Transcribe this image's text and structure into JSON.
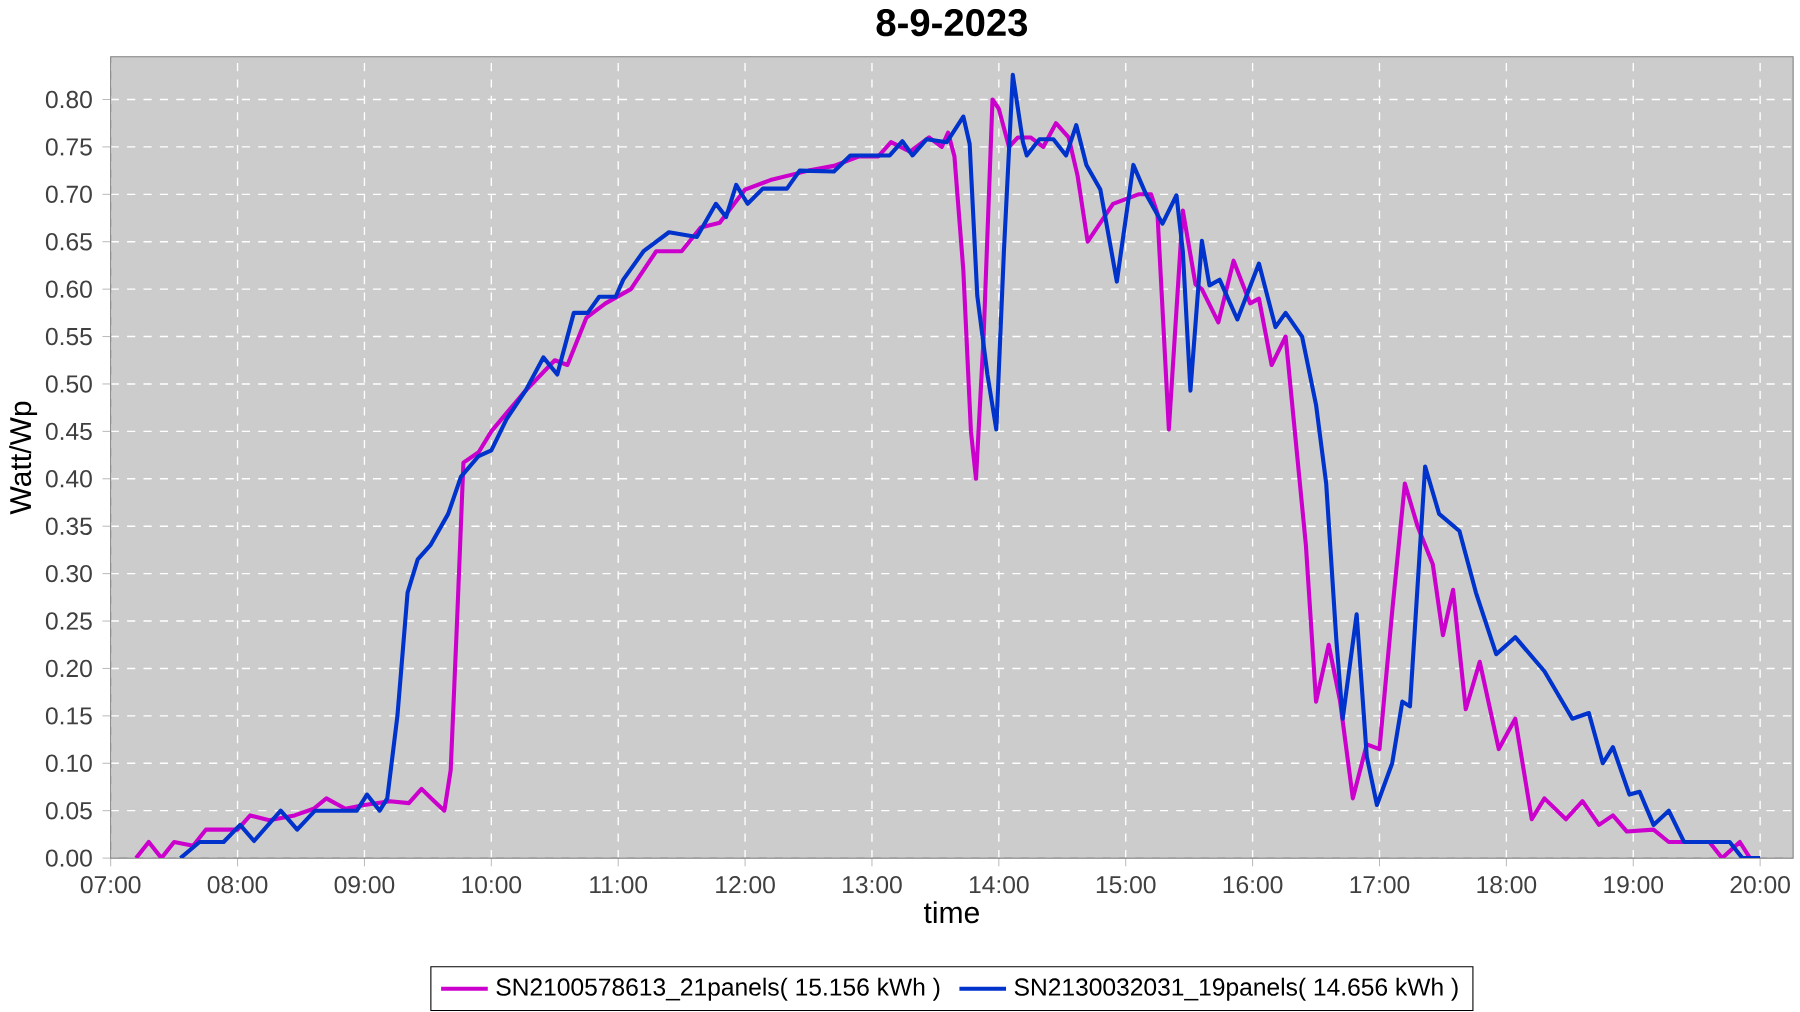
{
  "chart_data": {
    "type": "line",
    "title": "8-9-2023",
    "xlabel": "time",
    "ylabel": "Watt/Wp",
    "xlim": [
      7,
      20.26
    ],
    "ylim": [
      0,
      0.845
    ],
    "xticks": [
      {
        "value": 7,
        "label": "07:00"
      },
      {
        "value": 8,
        "label": "08:00"
      },
      {
        "value": 9,
        "label": "09:00"
      },
      {
        "value": 10,
        "label": "10:00"
      },
      {
        "value": 11,
        "label": "11:00"
      },
      {
        "value": 12,
        "label": "12:00"
      },
      {
        "value": 13,
        "label": "13:00"
      },
      {
        "value": 14,
        "label": "14:00"
      },
      {
        "value": 15,
        "label": "15:00"
      },
      {
        "value": 16,
        "label": "16:00"
      },
      {
        "value": 17,
        "label": "17:00"
      },
      {
        "value": 18,
        "label": "18:00"
      },
      {
        "value": 19,
        "label": "19:00"
      },
      {
        "value": 20,
        "label": "20:00"
      }
    ],
    "yticks": [
      {
        "value": 0,
        "label": "0.00"
      },
      {
        "value": 0.05,
        "label": "0.05"
      },
      {
        "value": 0.1,
        "label": "0.10"
      },
      {
        "value": 0.15,
        "label": "0.15"
      },
      {
        "value": 0.2,
        "label": "0.20"
      },
      {
        "value": 0.25,
        "label": "0.25"
      },
      {
        "value": 0.3,
        "label": "0.30"
      },
      {
        "value": 0.35,
        "label": "0.35"
      },
      {
        "value": 0.4,
        "label": "0.40"
      },
      {
        "value": 0.45,
        "label": "0.45"
      },
      {
        "value": 0.5,
        "label": "0.50"
      },
      {
        "value": 0.55,
        "label": "0.55"
      },
      {
        "value": 0.6,
        "label": "0.60"
      },
      {
        "value": 0.65,
        "label": "0.65"
      },
      {
        "value": 0.7,
        "label": "0.70"
      },
      {
        "value": 0.75,
        "label": "0.75"
      },
      {
        "value": 0.8,
        "label": "0.80"
      }
    ],
    "grid": true,
    "legend": "bottom",
    "marker": "none",
    "line_style": "solid",
    "series": [
      {
        "name": "SN2100578613_21panels( 15.156 kWh )",
        "color": "#cc00cc",
        "x": [
          7.2,
          7.3,
          7.4,
          7.5,
          7.65,
          7.75,
          8.0,
          8.1,
          8.25,
          8.45,
          8.6,
          8.7,
          8.85,
          9.0,
          9.2,
          9.35,
          9.45,
          9.55,
          9.63,
          9.68,
          9.73,
          9.78,
          9.9,
          10.0,
          10.25,
          10.5,
          10.6,
          10.75,
          10.9,
          11.1,
          11.3,
          11.5,
          11.65,
          11.8,
          12.0,
          12.2,
          12.5,
          12.7,
          12.9,
          13.05,
          13.15,
          13.3,
          13.45,
          13.55,
          13.6,
          13.65,
          13.72,
          13.78,
          13.82,
          13.88,
          13.95,
          14.0,
          14.08,
          14.15,
          14.25,
          14.35,
          14.45,
          14.55,
          14.62,
          14.7,
          14.9,
          15.1,
          15.2,
          15.25,
          15.34,
          15.45,
          15.55,
          15.6,
          15.73,
          15.85,
          15.98,
          16.05,
          16.15,
          16.26,
          16.42,
          16.5,
          16.6,
          16.69,
          16.79,
          16.9,
          17.0,
          17.1,
          17.2,
          17.3,
          17.42,
          17.5,
          17.58,
          17.68,
          17.79,
          17.94,
          18.07,
          18.2,
          18.3,
          18.47,
          18.6,
          18.73,
          18.84,
          18.95,
          19.16,
          19.28,
          19.6,
          19.7,
          19.84,
          19.92
        ],
        "values": [
          0,
          0.017,
          0,
          0.017,
          0.013,
          0.03,
          0.03,
          0.045,
          0.04,
          0.045,
          0.052,
          0.063,
          0.052,
          0.056,
          0.06,
          0.058,
          0.073,
          0.06,
          0.05,
          0.093,
          0.25,
          0.417,
          0.428,
          0.45,
          0.49,
          0.525,
          0.52,
          0.57,
          0.585,
          0.6,
          0.64,
          0.64,
          0.665,
          0.67,
          0.705,
          0.715,
          0.725,
          0.73,
          0.74,
          0.74,
          0.755,
          0.745,
          0.76,
          0.75,
          0.765,
          0.74,
          0.62,
          0.45,
          0.4,
          0.55,
          0.8,
          0.79,
          0.75,
          0.76,
          0.76,
          0.75,
          0.775,
          0.76,
          0.72,
          0.65,
          0.69,
          0.7,
          0.7,
          0.68,
          0.452,
          0.683,
          0.605,
          0.6,
          0.565,
          0.63,
          0.585,
          0.59,
          0.52,
          0.55,
          0.33,
          0.165,
          0.225,
          0.165,
          0.063,
          0.12,
          0.115,
          0.26,
          0.395,
          0.35,
          0.31,
          0.235,
          0.283,
          0.157,
          0.207,
          0.115,
          0.147,
          0.041,
          0.063,
          0.041,
          0.06,
          0.035,
          0.045,
          0.028,
          0.03,
          0.017,
          0.017,
          0,
          0.017,
          0
        ]
      },
      {
        "name": "SN2130032031_19panels( 14.656 kWh )",
        "color": "#0033cc",
        "x": [
          7.55,
          7.7,
          7.89,
          8.02,
          8.13,
          8.34,
          8.47,
          8.61,
          8.94,
          9.02,
          9.12,
          9.18,
          9.26,
          9.34,
          9.42,
          9.52,
          9.66,
          9.76,
          9.9,
          10.0,
          10.12,
          10.27,
          10.41,
          10.52,
          10.65,
          10.76,
          10.85,
          10.98,
          11.04,
          11.2,
          11.4,
          11.62,
          11.77,
          11.85,
          11.93,
          12.02,
          12.14,
          12.33,
          12.43,
          12.7,
          12.83,
          13.14,
          13.24,
          13.32,
          13.43,
          13.59,
          13.72,
          13.77,
          13.83,
          13.91,
          13.98,
          14.04,
          14.11,
          14.19,
          14.22,
          14.32,
          14.43,
          14.53,
          14.61,
          14.69,
          14.8,
          14.93,
          15.06,
          15.16,
          15.29,
          15.4,
          15.45,
          15.51,
          15.6,
          15.66,
          15.74,
          15.88,
          16.05,
          16.18,
          16.26,
          16.39,
          16.5,
          16.58,
          16.66,
          16.71,
          16.82,
          16.9,
          16.98,
          17.1,
          17.18,
          17.24,
          17.36,
          17.47,
          17.63,
          17.76,
          17.92,
          18.07,
          18.3,
          18.52,
          18.65,
          18.76,
          18.84,
          18.97,
          19.05,
          19.16,
          19.28,
          19.4,
          19.76,
          19.86,
          20.0
        ],
        "values": [
          0,
          0.017,
          0.017,
          0.035,
          0.018,
          0.05,
          0.03,
          0.05,
          0.05,
          0.067,
          0.05,
          0.063,
          0.15,
          0.28,
          0.315,
          0.33,
          0.363,
          0.402,
          0.424,
          0.43,
          0.463,
          0.493,
          0.528,
          0.51,
          0.575,
          0.575,
          0.592,
          0.592,
          0.61,
          0.64,
          0.66,
          0.655,
          0.69,
          0.676,
          0.71,
          0.69,
          0.706,
          0.706,
          0.725,
          0.724,
          0.741,
          0.741,
          0.756,
          0.741,
          0.758,
          0.755,
          0.782,
          0.753,
          0.593,
          0.51,
          0.452,
          0.64,
          0.826,
          0.755,
          0.741,
          0.758,
          0.758,
          0.741,
          0.773,
          0.731,
          0.705,
          0.608,
          0.731,
          0.7,
          0.669,
          0.699,
          0.64,
          0.493,
          0.651,
          0.604,
          0.61,
          0.568,
          0.627,
          0.56,
          0.575,
          0.55,
          0.478,
          0.395,
          0.23,
          0.147,
          0.257,
          0.107,
          0.056,
          0.1,
          0.165,
          0.16,
          0.413,
          0.363,
          0.345,
          0.28,
          0.215,
          0.233,
          0.197,
          0.147,
          0.153,
          0.1,
          0.117,
          0.067,
          0.07,
          0.035,
          0.05,
          0.017,
          0.017,
          0,
          0
        ]
      }
    ]
  }
}
